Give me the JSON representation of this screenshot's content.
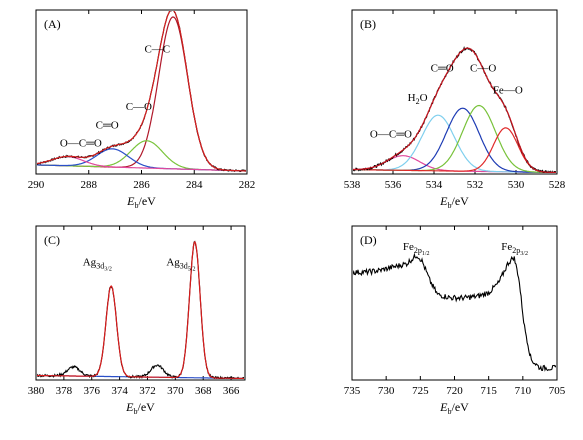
{
  "chart_data": [
    {
      "type": "line",
      "panel_label": "(A)",
      "xlabel_main": "E",
      "xlabel_sub": "b",
      "xlabel_unit": "/eV",
      "xlim": [
        290,
        282
      ],
      "xticks": [
        290,
        288,
        286,
        284,
        282
      ],
      "baseline": {
        "start": 6,
        "end": 2
      },
      "series": [
        {
          "color": "#000000",
          "role": "raw",
          "noise": 0.6,
          "peaks": [
            {
              "center": 284.8,
              "height": 100,
              "width": 0.55
            },
            {
              "center": 285.8,
              "height": 18,
              "width": 0.6
            },
            {
              "center": 287.1,
              "height": 12,
              "width": 0.6
            },
            {
              "center": 288.8,
              "height": 6,
              "width": 0.6
            }
          ]
        },
        {
          "color": "#d62020",
          "role": "fit",
          "peaks": [
            {
              "center": 284.8,
              "height": 100,
              "width": 0.55
            },
            {
              "center": 285.8,
              "height": 18,
              "width": 0.6
            },
            {
              "center": 287.1,
              "height": 12,
              "width": 0.6
            },
            {
              "center": 288.8,
              "height": 6,
              "width": 0.6
            }
          ]
        },
        {
          "color": "#b0182a",
          "role": "component",
          "peaks": [
            {
              "center": 284.8,
              "height": 100,
              "width": 0.55
            }
          ]
        },
        {
          "color": "#7ac43c",
          "role": "component",
          "peaks": [
            {
              "center": 285.8,
              "height": 18,
              "width": 0.6
            }
          ]
        },
        {
          "color": "#2a4fc8",
          "role": "component",
          "peaks": [
            {
              "center": 287.1,
              "height": 12,
              "width": 0.6
            }
          ]
        },
        {
          "color": "#e0489c",
          "role": "component",
          "peaks": [
            {
              "center": 288.8,
              "height": 6,
              "width": 0.6
            }
          ]
        }
      ],
      "ymax": 108,
      "annotations": [
        {
          "text": "C—C",
          "x": 285.4,
          "y": 80
        },
        {
          "text": "C—O",
          "x": 286.1,
          "y": 42
        },
        {
          "text": "C═O",
          "x": 287.3,
          "y": 30
        },
        {
          "text": "O—C═O",
          "x": 288.3,
          "y": 18
        }
      ]
    },
    {
      "type": "line",
      "panel_label": "(B)",
      "xlabel_main": "E",
      "xlabel_sub": "b",
      "xlabel_unit": "/eV",
      "xlim": [
        538,
        528
      ],
      "xticks": [
        538,
        536,
        534,
        532,
        530,
        528
      ],
      "baseline": {
        "start": 3,
        "end": 1
      },
      "series": [
        {
          "color": "#000000",
          "role": "raw",
          "noise": 0.9,
          "peaks": [
            {
              "center": 535.5,
              "height": 10,
              "width": 0.8
            },
            {
              "center": 533.8,
              "height": 38,
              "width": 0.8
            },
            {
              "center": 532.6,
              "height": 43,
              "width": 0.8
            },
            {
              "center": 531.8,
              "height": 45,
              "width": 0.8
            },
            {
              "center": 530.5,
              "height": 30,
              "width": 0.6
            }
          ]
        },
        {
          "color": "#c8141e",
          "role": "fit",
          "peaks": [
            {
              "center": 535.5,
              "height": 10,
              "width": 0.8
            },
            {
              "center": 533.8,
              "height": 38,
              "width": 0.8
            },
            {
              "center": 532.6,
              "height": 43,
              "width": 0.8
            },
            {
              "center": 531.8,
              "height": 45,
              "width": 0.8
            },
            {
              "center": 530.5,
              "height": 30,
              "width": 0.6
            }
          ]
        },
        {
          "color": "#e0489c",
          "role": "component",
          "peaks": [
            {
              "center": 535.5,
              "height": 10,
              "width": 0.8
            }
          ]
        },
        {
          "color": "#7fcfee",
          "role": "component",
          "peaks": [
            {
              "center": 533.8,
              "height": 38,
              "width": 0.8
            }
          ]
        },
        {
          "color": "#1e3cb4",
          "role": "component",
          "peaks": [
            {
              "center": 532.6,
              "height": 43,
              "width": 0.8
            }
          ]
        },
        {
          "color": "#78c23a",
          "role": "component",
          "peaks": [
            {
              "center": 531.8,
              "height": 45,
              "width": 0.8
            }
          ]
        },
        {
          "color": "#e02a2a",
          "role": "component",
          "peaks": [
            {
              "center": 530.5,
              "height": 30,
              "width": 0.6
            }
          ]
        }
      ],
      "ymax": 112,
      "annotations": [
        {
          "text": "C═O",
          "x": 533.6,
          "y": 70
        },
        {
          "text": "C—O",
          "x": 531.6,
          "y": 70
        },
        {
          "text": "H",
          "sub": "2",
          "tail": "O",
          "x": 534.8,
          "y": 50
        },
        {
          "text": "Fe—O",
          "x": 530.4,
          "y": 55
        },
        {
          "text": "O—C═O",
          "x": 536.1,
          "y": 25
        }
      ]
    },
    {
      "type": "line",
      "panel_label": "(C)",
      "xlabel_main": "E",
      "xlabel_sub": "b",
      "xlabel_unit": "/eV",
      "xlim": [
        380,
        365
      ],
      "xticks": [
        380,
        378,
        376,
        374,
        372,
        370,
        368,
        366
      ],
      "baseline": {
        "start": 3,
        "end": 1
      },
      "series": [
        {
          "color": "#000000",
          "role": "raw",
          "noise": 0.8,
          "peaks": [
            {
              "center": 374.6,
              "height": 60,
              "width": 0.38
            },
            {
              "center": 368.6,
              "height": 90,
              "width": 0.38
            },
            {
              "center": 377.3,
              "height": 6,
              "width": 0.45
            },
            {
              "center": 371.3,
              "height": 8,
              "width": 0.45
            }
          ]
        },
        {
          "color": "#d81c1c",
          "role": "fit",
          "peaks": [
            {
              "center": 374.6,
              "height": 60,
              "width": 0.38
            },
            {
              "center": 368.6,
              "height": 90,
              "width": 0.38
            }
          ]
        },
        {
          "color": "#2a4fc8",
          "role": "background",
          "peaks": []
        }
      ],
      "ymax": 102,
      "annotations": [
        {
          "text": "Ag",
          "sub": "3d",
          "subsub": "3/2",
          "x": 375.6,
          "y": 76
        },
        {
          "text": "Ag",
          "sub": "3d",
          "subsub": "5/2",
          "x": 369.6,
          "y": 76
        }
      ]
    },
    {
      "type": "line",
      "panel_label": "(D)",
      "xlabel_main": "E",
      "xlabel_sub": "b",
      "xlabel_unit": "/eV",
      "xlim": [
        735,
        705
      ],
      "xticks": [
        735,
        730,
        725,
        720,
        715,
        710,
        705
      ],
      "series": [
        {
          "color": "#000000",
          "role": "raw",
          "noise": 1.6,
          "points": [
            [
              735,
              63
            ],
            [
              733,
              63
            ],
            [
              731,
              64
            ],
            [
              729,
              66
            ],
            [
              727,
              68
            ],
            [
              725.5,
              73
            ],
            [
              724.8,
              70
            ],
            [
              723.6,
              58
            ],
            [
              722.5,
              50
            ],
            [
              720.5,
              48
            ],
            [
              718.5,
              48
            ],
            [
              716.5,
              49
            ],
            [
              715,
              51
            ],
            [
              713.5,
              57
            ],
            [
              712.2,
              68
            ],
            [
              711.3,
              72
            ],
            [
              710.6,
              60
            ],
            [
              709.8,
              32
            ],
            [
              708.8,
              12
            ],
            [
              707.5,
              7
            ],
            [
              705,
              7
            ]
          ]
        }
      ],
      "ymax": 90,
      "annotations": [
        {
          "text": "Fe",
          "sub": "2p",
          "subsub": "1/2",
          "x": 725.6,
          "y": 76
        },
        {
          "text": "Fe",
          "sub": "2p",
          "subsub": "3/2",
          "x": 711.2,
          "y": 76
        }
      ]
    }
  ]
}
